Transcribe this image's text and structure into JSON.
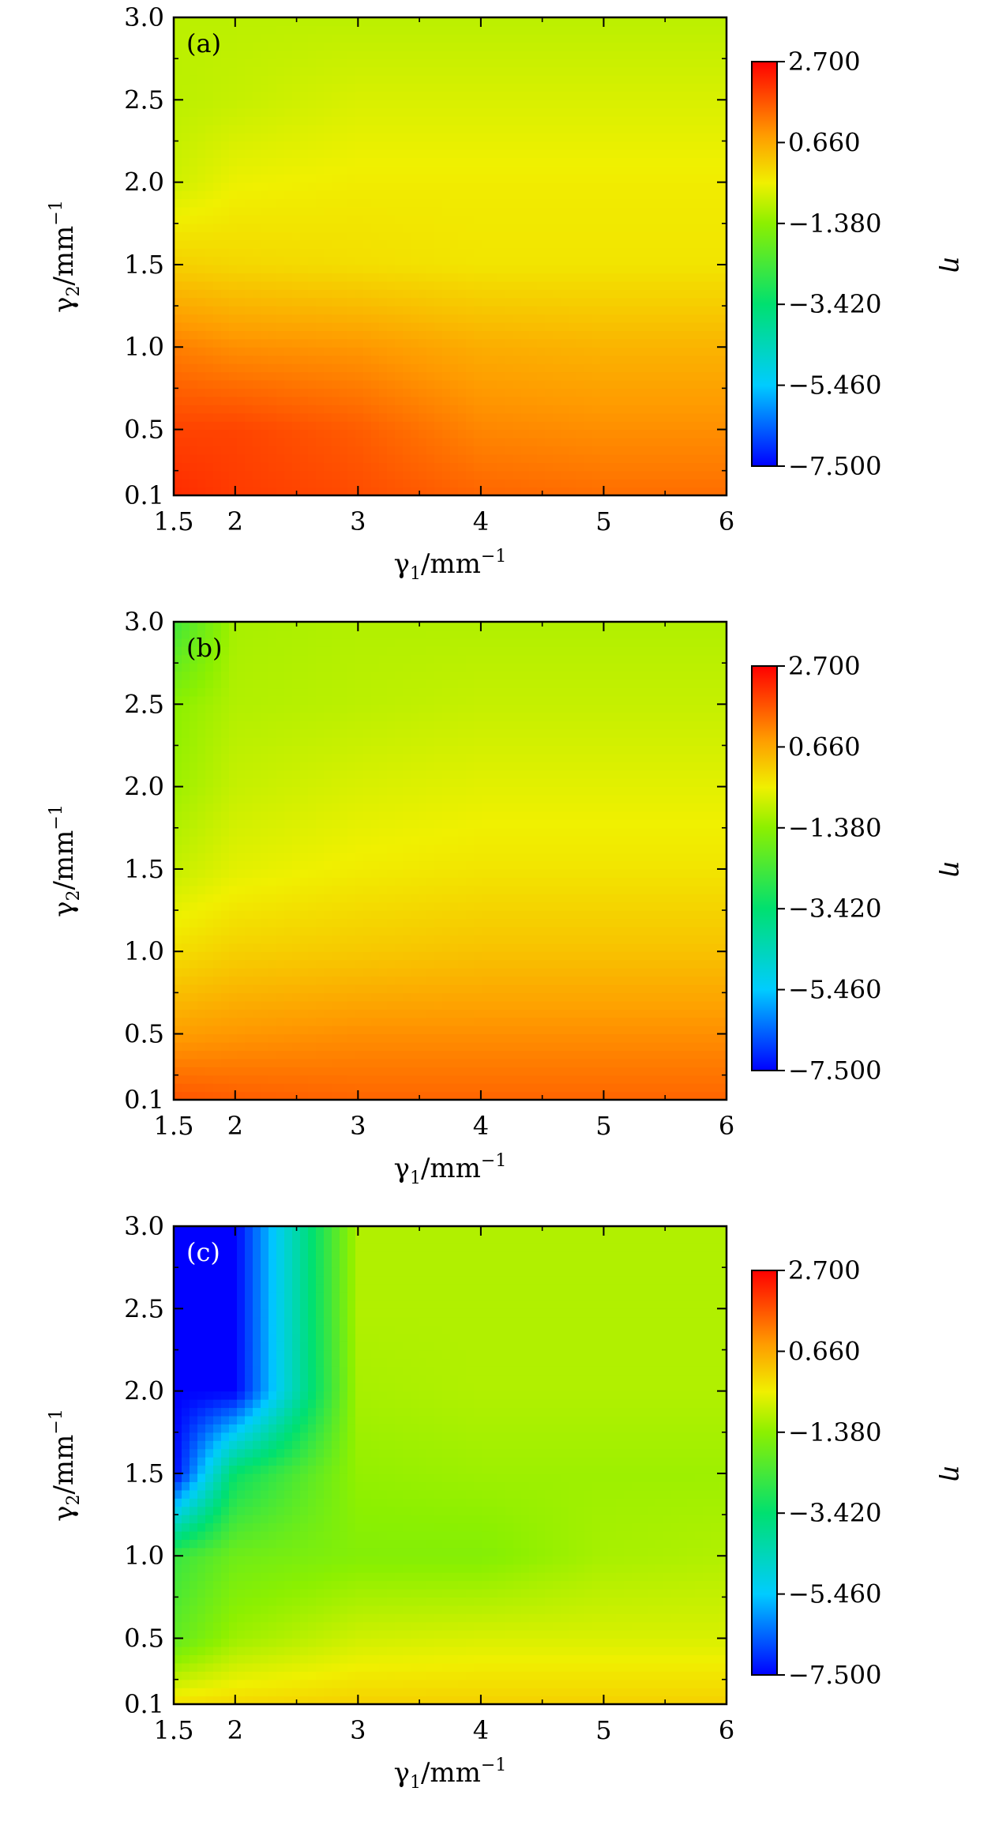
{
  "chart_data": [
    {
      "type": "heatmap",
      "panel_label": "(a)",
      "xlabel": "γ1/mm−1",
      "ylabel": "γ2/mm−1",
      "colorbar_label": "η",
      "x_range": [
        1.5,
        6
      ],
      "y_range": [
        0.1,
        3.0
      ],
      "x_ticks": [
        "1.5",
        "2",
        "3",
        "4",
        "5",
        "6"
      ],
      "y_ticks": [
        "0.1",
        "0.5",
        "1.0",
        "1.5",
        "2.0",
        "2.5",
        "3.0"
      ],
      "colorbar_ticks": [
        "2.700",
        "0.660",
        "−1.380",
        "−3.420",
        "−5.460",
        "−7.500"
      ],
      "colorbar_range": [
        -7.5,
        2.7
      ],
      "x": [
        1.5,
        2,
        3,
        4,
        5,
        6
      ],
      "y": [
        0.1,
        0.5,
        1.0,
        1.5,
        2.0,
        2.5,
        3.0
      ],
      "z": [
        [
          2.2,
          2.0,
          1.8,
          1.5,
          1.4,
          1.4
        ],
        [
          1.9,
          1.9,
          1.6,
          1.1,
          1.0,
          1.0
        ],
        [
          1.2,
          1.0,
          0.9,
          0.6,
          0.5,
          0.5
        ],
        [
          0.1,
          0.0,
          -0.1,
          -0.2,
          -0.2,
          -0.2
        ],
        [
          -0.7,
          -0.4,
          -0.3,
          -0.3,
          -0.3,
          -0.3
        ],
        [
          -0.9,
          -0.8,
          -0.6,
          -0.6,
          -0.6,
          -0.6
        ],
        [
          -0.9,
          -0.9,
          -0.9,
          -0.9,
          -0.9,
          -0.9
        ]
      ]
    },
    {
      "type": "heatmap",
      "panel_label": "(b)",
      "xlabel": "γ1/mm−1",
      "ylabel": "γ2/mm−1",
      "colorbar_label": "η",
      "x_range": [
        1.5,
        6
      ],
      "y_range": [
        0.1,
        3.0
      ],
      "x_ticks": [
        "1.5",
        "2",
        "3",
        "4",
        "5",
        "6"
      ],
      "y_ticks": [
        "0.1",
        "0.5",
        "1.0",
        "1.5",
        "2.0",
        "2.5",
        "3.0"
      ],
      "colorbar_ticks": [
        "2.700",
        "0.660",
        "−1.380",
        "−3.420",
        "−5.460",
        "−7.500"
      ],
      "colorbar_range": [
        -7.5,
        2.7
      ],
      "x": [
        1.5,
        2,
        3,
        4,
        5,
        6
      ],
      "y": [
        0.1,
        0.5,
        1.0,
        1.5,
        2.0,
        2.5,
        3.0
      ],
      "z": [
        [
          1.7,
          1.6,
          1.5,
          1.5,
          1.5,
          1.5
        ],
        [
          0.8,
          0.9,
          1.0,
          1.0,
          1.0,
          1.0
        ],
        [
          -0.1,
          0.1,
          0.2,
          0.3,
          0.3,
          0.3
        ],
        [
          -0.8,
          -0.5,
          -0.3,
          -0.2,
          -0.2,
          -0.2
        ],
        [
          -1.2,
          -0.8,
          -0.6,
          -0.5,
          -0.5,
          -0.5
        ],
        [
          -1.4,
          -1.0,
          -0.9,
          -0.8,
          -0.8,
          -0.8
        ],
        [
          -2.5,
          -1.1,
          -1.0,
          -1.0,
          -1.0,
          -1.0
        ]
      ]
    },
    {
      "type": "heatmap",
      "panel_label": "(c)",
      "xlabel": "γ1/mm−1",
      "ylabel": "γ2/mm−1",
      "colorbar_label": "η",
      "x_range": [
        1.5,
        6
      ],
      "y_range": [
        0.1,
        3.0
      ],
      "x_ticks": [
        "1.5",
        "2",
        "3",
        "4",
        "5",
        "6"
      ],
      "y_ticks": [
        "0.1",
        "0.5",
        "1.0",
        "1.5",
        "2.0",
        "2.5",
        "3.0"
      ],
      "colorbar_ticks": [
        "2.700",
        "0.660",
        "−1.380",
        "−3.420",
        "−5.460",
        "−7.500"
      ],
      "colorbar_range": [
        -7.5,
        2.7
      ],
      "x": [
        1.5,
        2,
        3,
        4,
        5,
        6
      ],
      "y": [
        0.1,
        0.5,
        1.0,
        1.5,
        2.0,
        2.5,
        3.0
      ],
      "z": [
        [
          -0.1,
          0.0,
          0.1,
          0.1,
          0.1,
          0.1
        ],
        [
          -2.0,
          -1.2,
          -0.7,
          -0.6,
          -0.6,
          -0.6
        ],
        [
          -2.6,
          -1.8,
          -1.5,
          -1.5,
          -1.1,
          -1.0
        ],
        [
          -7.5,
          -3.3,
          -1.3,
          -1.2,
          -1.2,
          -1.2
        ],
        [
          -7.5,
          -7.5,
          -1.1,
          -1.0,
          -1.0,
          -1.0
        ],
        [
          -7.5,
          -7.5,
          -1.0,
          -1.0,
          -1.0,
          -1.0
        ],
        [
          -7.5,
          -7.5,
          -1.0,
          -1.0,
          -1.0,
          -1.0
        ]
      ]
    }
  ]
}
